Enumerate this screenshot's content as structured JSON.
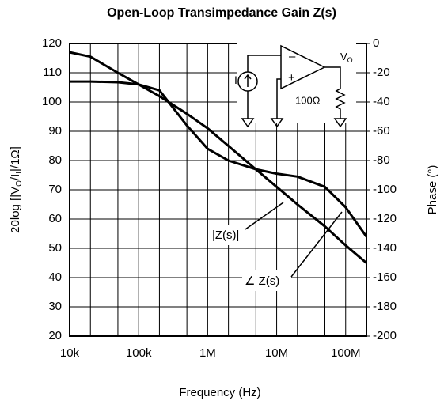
{
  "chart_data": {
    "type": "line",
    "title": "Open-Loop Transimpedance Gain Z(s)",
    "xlabel": "Frequency (Hz)",
    "ylabel_parts": [
      "20log [|V",
      "O",
      "/I",
      "I",
      "|/1Ω]"
    ],
    "y2label": "Phase (°)",
    "xscale": "log",
    "xlim": [
      10000,
      200000000
    ],
    "xticks": [
      {
        "value": 10000,
        "label": "10k"
      },
      {
        "value": 100000,
        "label": "100k"
      },
      {
        "value": 1000000,
        "label": "1M"
      },
      {
        "value": 10000000,
        "label": "10M"
      },
      {
        "value": 100000000,
        "label": "100M"
      }
    ],
    "xminorticks": [
      20000,
      50000,
      200000,
      500000,
      2000000,
      5000000,
      20000000,
      50000000
    ],
    "ylim": [
      20,
      120
    ],
    "yticks": [
      20,
      30,
      40,
      50,
      60,
      70,
      80,
      90,
      100,
      110,
      120
    ],
    "y2lim": [
      -200,
      0
    ],
    "y2ticks": [
      -200,
      -180,
      -160,
      -140,
      -120,
      -100,
      -80,
      -60,
      -40,
      -20,
      0
    ],
    "grid": true,
    "x": [
      10000,
      20000,
      50000,
      100000,
      200000,
      500000,
      1000000,
      2000000,
      5000000,
      10000000,
      20000000,
      50000000,
      100000000,
      200000000
    ],
    "series": [
      {
        "name": "|Z(s)|",
        "color": "#000000",
        "values": [
          117,
          115.5,
          110,
          106,
          102,
          96,
          91,
          85,
          77,
          71,
          65,
          57.5,
          51,
          45
        ]
      },
      {
        "name": "∠ Z(s)",
        "color": "#000000",
        "axis": "y2",
        "values": [
          -26,
          -26,
          -26.5,
          -28,
          -32,
          -56,
          -72,
          -80,
          -86,
          -89,
          -91,
          -98,
          -112,
          -132
        ]
      }
    ],
    "circuit": {
      "source": "I",
      "source_sub": "I",
      "output": "V",
      "output_sub": "O",
      "resistor": "100Ω",
      "minus": "–",
      "plus": "+"
    }
  }
}
